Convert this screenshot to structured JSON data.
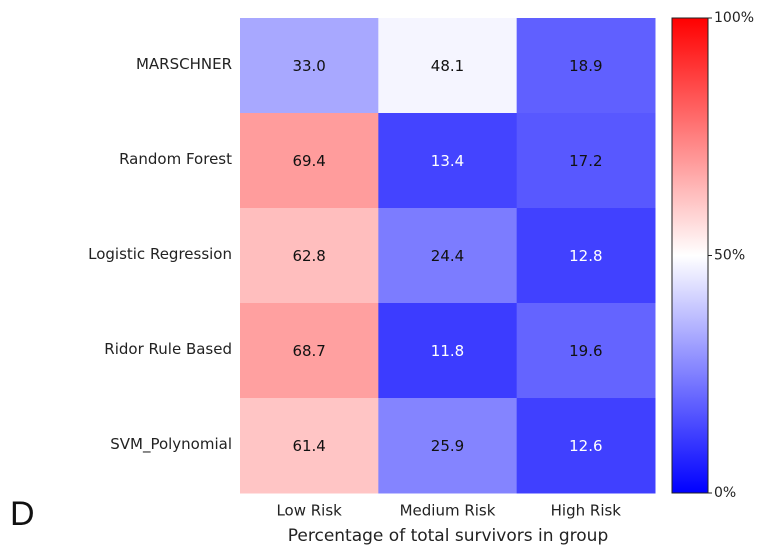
{
  "chart_data": {
    "type": "heatmap",
    "panel_label": "D",
    "x_label": "Percentage of total survivors in group",
    "x_categories": [
      "Low Risk",
      "Medium Risk",
      "High Risk"
    ],
    "y_categories": [
      "MARSCHNER",
      "Random Forest",
      "Logistic Regression",
      "Ridor Rule Based",
      "SVM_Polynomial"
    ],
    "values": [
      [
        33.0,
        48.1,
        18.9
      ],
      [
        69.4,
        13.4,
        17.2
      ],
      [
        62.8,
        24.4,
        12.8
      ],
      [
        68.7,
        11.8,
        19.6
      ],
      [
        61.4,
        25.9,
        12.6
      ]
    ],
    "value_labels": [
      [
        "33.0",
        "48.1",
        "18.9"
      ],
      [
        "69.4",
        "13.4",
        "17.2"
      ],
      [
        "62.8",
        "24.4",
        "12.8"
      ],
      [
        "68.7",
        "11.8",
        "19.6"
      ],
      [
        "61.4",
        "25.9",
        "12.6"
      ]
    ],
    "colormap": "bwr",
    "clim": [
      0,
      100
    ],
    "cticks": [
      {
        "value": 0,
        "label": "0%"
      },
      {
        "value": 50,
        "label": "50%"
      },
      {
        "value": 100,
        "label": "100%"
      }
    ]
  }
}
